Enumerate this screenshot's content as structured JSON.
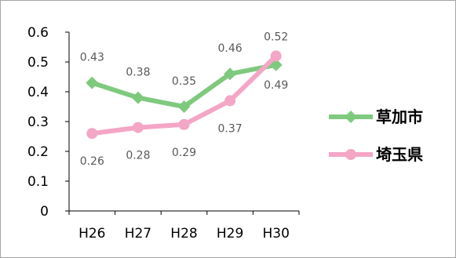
{
  "chart_data": {
    "type": "line",
    "categories": [
      "H26",
      "H27",
      "H28",
      "H29",
      "H30"
    ],
    "ylim": [
      0,
      0.6
    ],
    "yticks": [
      "0",
      "0.1",
      "0.2",
      "0.3",
      "0.4",
      "0.5",
      "0.6"
    ],
    "grid": false,
    "legend_position": "right",
    "series": [
      {
        "name": "草加市",
        "values": [
          0.43,
          0.38,
          0.35,
          0.46,
          0.49
        ],
        "color": "#7fc97f",
        "marker": "diamond",
        "labels": [
          "0.43",
          "0.38",
          "0.35",
          "0.46",
          "0.49"
        ]
      },
      {
        "name": "埼玉県",
        "values": [
          0.26,
          0.28,
          0.29,
          0.37,
          0.52
        ],
        "color": "#f4a6c6",
        "marker": "circle",
        "labels": [
          "0.26",
          "0.28",
          "0.29",
          "0.37",
          "0.52"
        ]
      }
    ]
  }
}
